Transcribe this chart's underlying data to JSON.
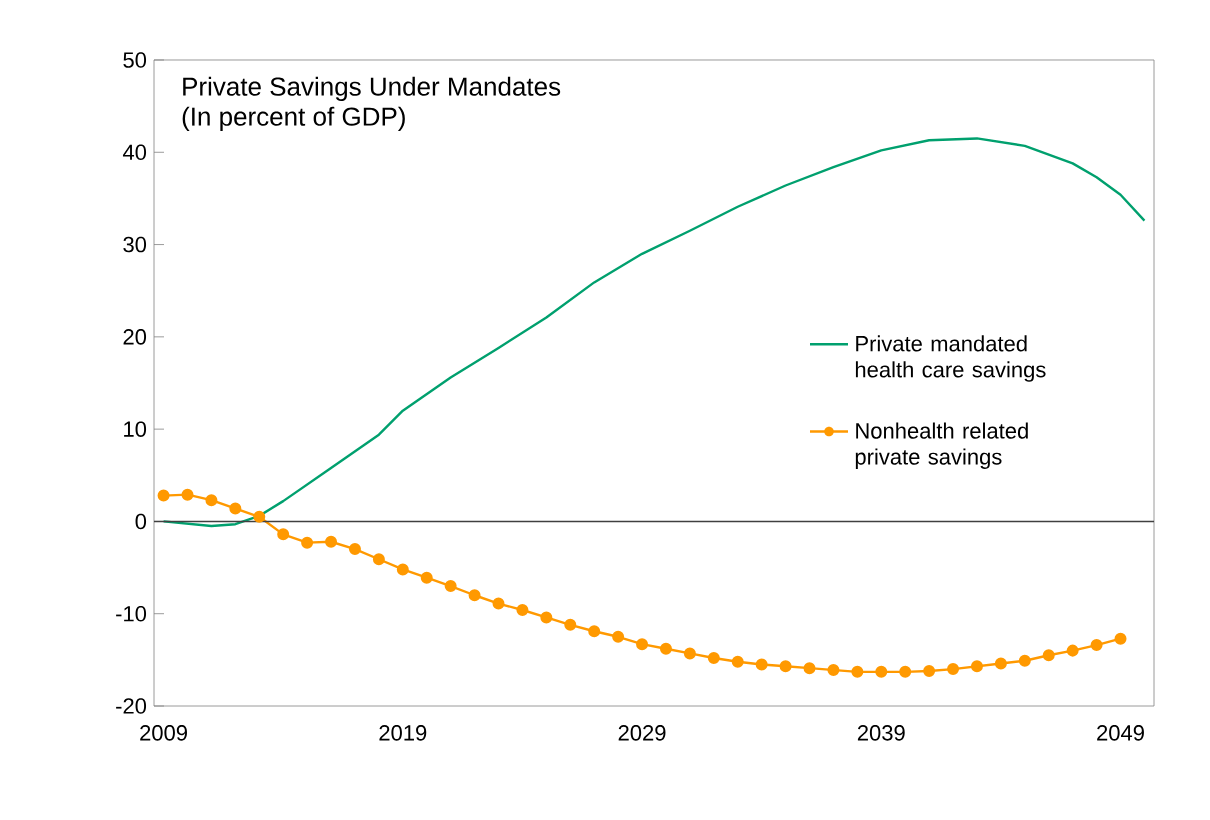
{
  "chart_data": {
    "type": "line",
    "title": "Private Savings Under Mandates",
    "subtitle": "(In percent of GDP)",
    "xlim": [
      2008.6,
      2050.4
    ],
    "xticks": [
      2009,
      2019,
      2029,
      2039,
      2049
    ],
    "ylim": [
      -20,
      50
    ],
    "yticks": [
      -20,
      -10,
      0,
      10,
      20,
      30,
      40,
      50
    ],
    "grid": false,
    "legend": "right",
    "ref_lines": [
      {
        "axis": "y",
        "value": 0,
        "color": "#404040"
      }
    ],
    "series": [
      {
        "name": "Private mandated health care savings",
        "color": "#00a06e",
        "marker": "none",
        "x": [
          2009,
          2011,
          2012,
          2013,
          2014,
          2016,
          2018,
          2019,
          2021,
          2023,
          2025,
          2027,
          2029,
          2031,
          2033,
          2035,
          2037,
          2039,
          2041,
          2043,
          2045,
          2047,
          2048,
          2049,
          2050
        ],
        "values": [
          0,
          -0.5,
          -0.3,
          0.6,
          2.2,
          5.8,
          9.4,
          12.0,
          15.6,
          18.8,
          22.1,
          25.9,
          29.0,
          31.5,
          34.1,
          36.4,
          38.4,
          40.2,
          41.3,
          41.5,
          40.7,
          38.8,
          37.3,
          35.4,
          32.6
        ]
      },
      {
        "name": "Nonhealth related private savings",
        "color": "#ff9900",
        "marker": "circle",
        "x": [
          2009,
          2010,
          2011,
          2012,
          2013,
          2014,
          2015,
          2016,
          2017,
          2018,
          2019,
          2020,
          2021,
          2022,
          2023,
          2024,
          2025,
          2026,
          2027,
          2028,
          2029,
          2030,
          2031,
          2032,
          2033,
          2034,
          2035,
          2036,
          2037,
          2038,
          2039,
          2040,
          2041,
          2042,
          2043,
          2044,
          2045,
          2046,
          2047,
          2048,
          2049
        ],
        "values": [
          2.8,
          2.9,
          2.3,
          1.4,
          0.5,
          -1.4,
          -2.3,
          -2.2,
          -3.0,
          -4.1,
          -5.2,
          -6.1,
          -7.0,
          -8.0,
          -8.9,
          -9.6,
          -10.4,
          -11.2,
          -11.9,
          -12.5,
          -13.3,
          -13.8,
          -14.3,
          -14.8,
          -15.2,
          -15.5,
          -15.7,
          -15.9,
          -16.1,
          -16.3,
          -16.3,
          -16.3,
          -16.2,
          -16.0,
          -15.7,
          -15.4,
          -15.1,
          -14.5,
          -14.0,
          -13.4,
          -12.7
        ]
      }
    ]
  }
}
